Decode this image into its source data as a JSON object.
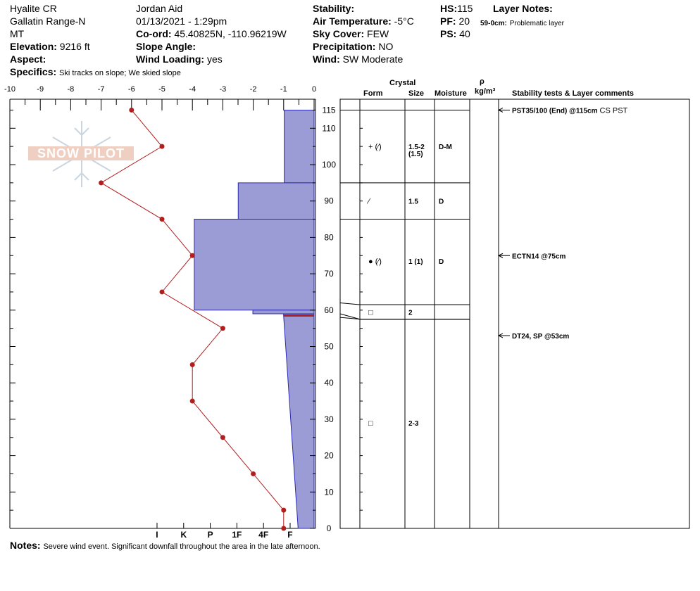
{
  "header": {
    "location": "Hyalite CR",
    "range": "Gallatin Range-N",
    "state": "MT",
    "elevation_label": "Elevation:",
    "elevation": "9216 ft",
    "aspect_label": "Aspect:",
    "aspect": "",
    "specifics_label": "Specifics:",
    "specifics": "Ski tracks on slope; We skied slope",
    "observer": "Jordan Aid",
    "datetime": "01/13/2021 - 1:29pm",
    "coord_label": "Co-ord:",
    "coord": "45.40825N, -110.96219W",
    "slope_label": "Slope Angle:",
    "slope": "",
    "wind_loading_label": "Wind Loading:",
    "wind_loading": "yes",
    "stability_label": "Stability:",
    "stability": "",
    "air_temp_label": "Air Temperature:",
    "air_temp": "-5°C",
    "sky_label": "Sky Cover:",
    "sky": "FEW",
    "precip_label": "Precipitation:",
    "precip": "NO",
    "wind_label": "Wind:",
    "wind": "SW Moderate",
    "hs_label": "HS:",
    "hs": "115",
    "pf_label": "PF:",
    "pf": "20",
    "ps_label": "PS:",
    "ps": "40",
    "layer_notes_label": "Layer Notes:",
    "layer_note_range": "59-0cm:",
    "layer_note_text": "Problematic layer"
  },
  "notes_label": "Notes:",
  "notes": "Severe wind event. Significant downfall throughout the area in the late afternoon.",
  "logo_text": "SNOW PILOT",
  "colors": {
    "hardness_fill": "#9b9bd6",
    "hardness_stroke": "#2a2ab0",
    "temp": "#b01e1e",
    "weak_layer": "#b01e1e"
  },
  "chart_data": {
    "type": "snow-profile",
    "depth_range": [
      0,
      115
    ],
    "depth_ticks": [
      0,
      10,
      20,
      30,
      40,
      50,
      60,
      70,
      80,
      90,
      100,
      110,
      115
    ],
    "temp_range": [
      -10,
      0
    ],
    "temp_ticks": [
      -10,
      -9,
      -8,
      -7,
      -6,
      -5,
      -4,
      -3,
      -2,
      -1,
      0
    ],
    "hardness_labels": [
      "I",
      "K",
      "P",
      "1F",
      "4F",
      "F"
    ],
    "temperature_profile": [
      {
        "depth": 115,
        "temp": -6
      },
      {
        "depth": 105,
        "temp": -5
      },
      {
        "depth": 95,
        "temp": -7
      },
      {
        "depth": 85,
        "temp": -5
      },
      {
        "depth": 75,
        "temp": -4
      },
      {
        "depth": 65,
        "temp": -5
      },
      {
        "depth": 55,
        "temp": -3
      },
      {
        "depth": 45,
        "temp": -4
      },
      {
        "depth": 35,
        "temp": -4
      },
      {
        "depth": 25,
        "temp": -3
      },
      {
        "depth": 15,
        "temp": -2
      },
      {
        "depth": 5,
        "temp": -1
      },
      {
        "depth": 0,
        "temp": -1
      }
    ],
    "hardness_layers": [
      {
        "top": 115,
        "bottom": 95,
        "top_hardness": 1.12,
        "bottom_hardness": 1.12
      },
      {
        "top": 95,
        "bottom": 85,
        "top_hardness": 2.85,
        "bottom_hardness": 2.85
      },
      {
        "top": 85,
        "bottom": 60,
        "top_hardness": 4.5,
        "bottom_hardness": 4.5
      },
      {
        "top": 60,
        "bottom": 59,
        "top_hardness": 2.3,
        "bottom_hardness": 2.3
      },
      {
        "top": 59,
        "bottom": 0,
        "top_hardness": 1.15,
        "bottom_hardness": 0.6
      }
    ],
    "weak_layer_depth": 58.5,
    "column_headers": {
      "crystal": "Crystal",
      "form": "Form",
      "size": "Size",
      "moisture": "Moisture",
      "rho": "ρ",
      "density_unit": "kg/m³",
      "comments": "Stability tests & Layer comments"
    },
    "layers": [
      {
        "top": 115,
        "bottom": 95,
        "form": "+ (⁄)",
        "size": "1.5-2",
        "size2": "(1.5)",
        "moisture": "D-M",
        "label_depth": 105
      },
      {
        "top": 95,
        "bottom": 85,
        "form": "⁄",
        "size": "1.5",
        "size2": "",
        "moisture": "D",
        "label_depth": 90
      },
      {
        "top": 85,
        "bottom": 61.5,
        "form": "● (⁄)",
        "size": "1 (1)",
        "size2": "",
        "moisture": "D",
        "label_depth": 73.5
      },
      {
        "top": 61.5,
        "bottom": 57.5,
        "form": "□",
        "size": "2",
        "size2": "",
        "moisture": "",
        "label_depth": 59.5
      },
      {
        "top": 57.5,
        "bottom": 0,
        "form": "□",
        "size": "2-3",
        "size2": "",
        "moisture": "",
        "label_depth": 29
      }
    ],
    "stability_tests": [
      {
        "depth": 115,
        "bold": "PST35/100 (End) @115cm",
        "text": "CS PST"
      },
      {
        "depth": 75,
        "bold": "ECTN14 @75cm",
        "text": ""
      },
      {
        "depth": 53,
        "bold": "DT24, SP @53cm",
        "text": ""
      }
    ]
  }
}
